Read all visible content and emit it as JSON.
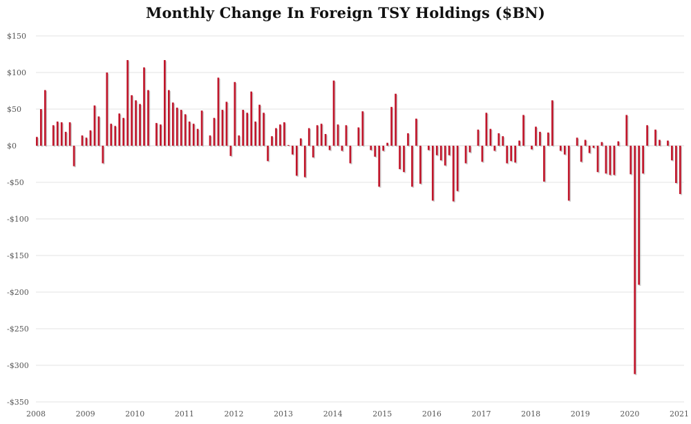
{
  "chart_data": {
    "type": "bar",
    "title": "Monthly Change In Foreign TSY Holdings  ($BN)",
    "xlabel": "",
    "ylabel": "",
    "ylim": [
      -350,
      150
    ],
    "yticks": [
      150,
      100,
      50,
      0,
      -50,
      -100,
      -150,
      -200,
      -250,
      -300,
      -350
    ],
    "ytick_labels": [
      "$150",
      "$100",
      "$50",
      "$0",
      "-$50",
      "-$100",
      "-$150",
      "-$200",
      "-$250",
      "-$300",
      "-$350"
    ],
    "xtick_labels": [
      "2008",
      "2009",
      "2010",
      "2011",
      "2012",
      "2013",
      "2014",
      "2015",
      "2016",
      "2017",
      "2018",
      "2019",
      "2020",
      "2021"
    ],
    "grid": true,
    "legend": "none",
    "series": [
      {
        "color": "#c0152a",
        "shadow_color": "#a8a8a8",
        "x": [
          "2008-01",
          "2008-02",
          "2008-03",
          "2008-04",
          "2008-05",
          "2008-06",
          "2008-07",
          "2008-08",
          "2008-09",
          "2008-10",
          "2008-11",
          "2008-12",
          "2009-01",
          "2009-02",
          "2009-03",
          "2009-04",
          "2009-05",
          "2009-06",
          "2009-07",
          "2009-08",
          "2009-09",
          "2009-10",
          "2009-11",
          "2009-12",
          "2010-01",
          "2010-02",
          "2010-03",
          "2010-04",
          "2010-05",
          "2010-06",
          "2010-07",
          "2010-08",
          "2010-09",
          "2010-10",
          "2010-11",
          "2010-12",
          "2011-01",
          "2011-02",
          "2011-03",
          "2011-04",
          "2011-05",
          "2011-06",
          "2011-07",
          "2011-08",
          "2011-09",
          "2011-10",
          "2011-11",
          "2011-12",
          "2012-01",
          "2012-02",
          "2012-03",
          "2012-04",
          "2012-05",
          "2012-06",
          "2012-07",
          "2012-08",
          "2012-09",
          "2012-10",
          "2012-11",
          "2012-12",
          "2013-01",
          "2013-02",
          "2013-03",
          "2013-04",
          "2013-05",
          "2013-06",
          "2013-07",
          "2013-08",
          "2013-09",
          "2013-10",
          "2013-11",
          "2013-12",
          "2014-01",
          "2014-02",
          "2014-03",
          "2014-04",
          "2014-05",
          "2014-06",
          "2014-07",
          "2014-08",
          "2014-09",
          "2014-10",
          "2014-11",
          "2014-12",
          "2015-01",
          "2015-02",
          "2015-03",
          "2015-04",
          "2015-05",
          "2015-06",
          "2015-07",
          "2015-08",
          "2015-09",
          "2015-10",
          "2015-11",
          "2015-12",
          "2016-01",
          "2016-02",
          "2016-03",
          "2016-04",
          "2016-05",
          "2016-06",
          "2016-07",
          "2016-08",
          "2016-09",
          "2016-10",
          "2016-11",
          "2016-12",
          "2017-01",
          "2017-02",
          "2017-03",
          "2017-04",
          "2017-05",
          "2017-06",
          "2017-07",
          "2017-08",
          "2017-09",
          "2017-10",
          "2017-11",
          "2017-12",
          "2018-01",
          "2018-02",
          "2018-03",
          "2018-04",
          "2018-05",
          "2018-06",
          "2018-07",
          "2018-08",
          "2018-09",
          "2018-10",
          "2018-11",
          "2018-12",
          "2019-01",
          "2019-02",
          "2019-03",
          "2019-04",
          "2019-05",
          "2019-06",
          "2019-07",
          "2019-08",
          "2019-09",
          "2019-10",
          "2019-11",
          "2019-12",
          "2020-01",
          "2020-02",
          "2020-03",
          "2020-04",
          "2020-05",
          "2020-06",
          "2020-07",
          "2020-08",
          "2020-09",
          "2020-10",
          "2020-11",
          "2020-12",
          "2021-01"
        ],
        "values": [
          12,
          50,
          76,
          0,
          28,
          33,
          32,
          19,
          32,
          -28,
          0,
          14,
          11,
          21,
          55,
          40,
          -24,
          100,
          30,
          27,
          44,
          38,
          117,
          69,
          62,
          57,
          107,
          76,
          0,
          31,
          29,
          117,
          76,
          59,
          52,
          49,
          43,
          33,
          30,
          23,
          48,
          0,
          14,
          38,
          93,
          49,
          60,
          -14,
          87,
          14,
          49,
          45,
          74,
          33,
          56,
          45,
          -21,
          13,
          24,
          29,
          32,
          1,
          -12,
          -41,
          10,
          -43,
          24,
          -16,
          28,
          30,
          16,
          -6,
          89,
          29,
          -7,
          28,
          -24,
          0,
          25,
          47,
          0,
          -6,
          -15,
          -56,
          -7,
          4,
          53,
          71,
          -32,
          -36,
          17,
          -56,
          37,
          -52,
          0,
          -6,
          -75,
          -13,
          -20,
          -27,
          -13,
          -76,
          -62,
          0,
          -24,
          -9,
          0,
          22,
          -22,
          45,
          23,
          -7,
          17,
          13,
          -24,
          -21,
          -23,
          7,
          42,
          0,
          -5,
          26,
          19,
          -49,
          18,
          62,
          0,
          -7,
          -12,
          -75,
          0,
          11,
          -22,
          8,
          -10,
          -3,
          -36,
          5,
          -38,
          -40,
          -40,
          6,
          0,
          42,
          -39,
          -312,
          -190,
          -38,
          28,
          0,
          22,
          8,
          0,
          7,
          -20,
          -51,
          -66
        ]
      }
    ]
  }
}
